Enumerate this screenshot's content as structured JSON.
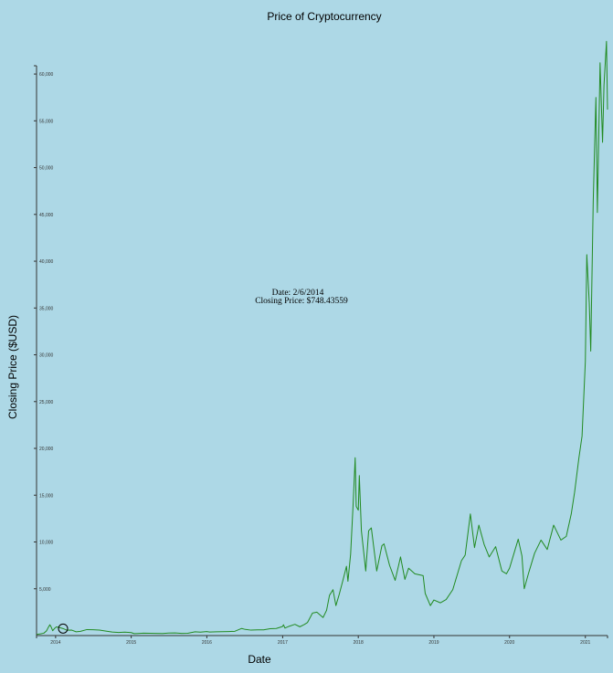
{
  "chart_data": {
    "type": "line",
    "title": "Price of Cryptocurrency",
    "xlabel": "Date",
    "ylabel": "Closing Price ($USD)",
    "xlim": [
      "2013-10-01",
      "2021-04-18"
    ],
    "ylim": [
      0,
      60000
    ],
    "x_ticks": [
      "2014",
      "2015",
      "2016",
      "2017",
      "2018",
      "2019",
      "2020",
      "2021"
    ],
    "y_ticks": [
      "5,000",
      "10,000",
      "15,000",
      "20,000",
      "25,000",
      "30,000",
      "35,000",
      "40,000",
      "45,000",
      "50,000",
      "55,000",
      "60,000"
    ],
    "y_tick_values": [
      5000,
      10000,
      15000,
      20000,
      25000,
      30000,
      35000,
      40000,
      45000,
      50000,
      55000,
      60000
    ],
    "line_color": "#228b22",
    "grid": false,
    "highlight": {
      "date": "2014-02-06",
      "value": 748.43559
    },
    "tooltip": {
      "date_line": "Date: 2/6/2014",
      "price_line": "Closing Price: $748.43559"
    },
    "series": [
      {
        "values": [
          [
            "2013-10-01",
            123
          ],
          [
            "2013-10-20",
            180
          ],
          [
            "2013-11-05",
            250
          ],
          [
            "2013-11-18",
            500
          ],
          [
            "2013-11-25",
            800
          ],
          [
            "2013-12-04",
            1150
          ],
          [
            "2013-12-10",
            950
          ],
          [
            "2013-12-18",
            520
          ],
          [
            "2013-12-26",
            740
          ],
          [
            "2014-01-05",
            930
          ],
          [
            "2014-01-20",
            850
          ],
          [
            "2014-02-06",
            748.43559
          ],
          [
            "2014-02-25",
            570
          ],
          [
            "2014-03-20",
            580
          ],
          [
            "2014-04-10",
            400
          ],
          [
            "2014-05-01",
            450
          ],
          [
            "2014-06-01",
            640
          ],
          [
            "2014-07-01",
            620
          ],
          [
            "2014-08-01",
            590
          ],
          [
            "2014-09-01",
            480
          ],
          [
            "2014-10-01",
            380
          ],
          [
            "2014-11-01",
            330
          ],
          [
            "2014-12-01",
            370
          ],
          [
            "2015-01-01",
            315
          ],
          [
            "2015-01-15",
            210
          ],
          [
            "2015-02-01",
            225
          ],
          [
            "2015-03-01",
            260
          ],
          [
            "2015-04-01",
            245
          ],
          [
            "2015-05-01",
            235
          ],
          [
            "2015-06-01",
            225
          ],
          [
            "2015-07-01",
            265
          ],
          [
            "2015-08-01",
            280
          ],
          [
            "2015-09-01",
            230
          ],
          [
            "2015-10-01",
            240
          ],
          [
            "2015-11-05",
            400
          ],
          [
            "2015-12-01",
            370
          ],
          [
            "2015-12-31",
            430
          ],
          [
            "2016-01-15",
            380
          ],
          [
            "2016-02-15",
            400
          ],
          [
            "2016-03-15",
            415
          ],
          [
            "2016-04-15",
            430
          ],
          [
            "2016-05-15",
            455
          ],
          [
            "2016-06-17",
            760
          ],
          [
            "2016-07-01",
            675
          ],
          [
            "2016-08-01",
            580
          ],
          [
            "2016-09-01",
            605
          ],
          [
            "2016-10-01",
            615
          ],
          [
            "2016-11-01",
            730
          ],
          [
            "2016-12-01",
            755
          ],
          [
            "2016-12-31",
            960
          ],
          [
            "2017-01-05",
            1150
          ],
          [
            "2017-01-12",
            800
          ],
          [
            "2017-02-01",
            990
          ],
          [
            "2017-03-01",
            1200
          ],
          [
            "2017-03-25",
            940
          ],
          [
            "2017-04-15",
            1180
          ],
          [
            "2017-05-01",
            1400
          ],
          [
            "2017-05-25",
            2400
          ],
          [
            "2017-06-15",
            2500
          ],
          [
            "2017-07-15",
            1930
          ],
          [
            "2017-08-01",
            2700
          ],
          [
            "2017-08-15",
            4300
          ],
          [
            "2017-09-01",
            4900
          ],
          [
            "2017-09-15",
            3200
          ],
          [
            "2017-10-01",
            4400
          ],
          [
            "2017-10-20",
            6000
          ],
          [
            "2017-11-05",
            7400
          ],
          [
            "2017-11-12",
            5800
          ],
          [
            "2017-11-25",
            8700
          ],
          [
            "2017-12-07",
            14000
          ],
          [
            "2017-12-17",
            19000
          ],
          [
            "2017-12-22",
            13800
          ],
          [
            "2018-01-01",
            13400
          ],
          [
            "2018-01-06",
            17100
          ],
          [
            "2018-01-16",
            11200
          ],
          [
            "2018-02-06",
            6900
          ],
          [
            "2018-02-20",
            11200
          ],
          [
            "2018-03-05",
            11500
          ],
          [
            "2018-03-31",
            6900
          ],
          [
            "2018-04-25",
            9600
          ],
          [
            "2018-05-05",
            9800
          ],
          [
            "2018-06-01",
            7500
          ],
          [
            "2018-06-28",
            5900
          ],
          [
            "2018-07-24",
            8400
          ],
          [
            "2018-08-14",
            6000
          ],
          [
            "2018-09-01",
            7200
          ],
          [
            "2018-10-01",
            6600
          ],
          [
            "2018-11-10",
            6400
          ],
          [
            "2018-11-20",
            4500
          ],
          [
            "2018-12-15",
            3200
          ],
          [
            "2019-01-01",
            3800
          ],
          [
            "2019-02-01",
            3500
          ],
          [
            "2019-03-01",
            3850
          ],
          [
            "2019-04-02",
            4900
          ],
          [
            "2019-05-14",
            8000
          ],
          [
            "2019-06-01",
            8600
          ],
          [
            "2019-06-26",
            13000
          ],
          [
            "2019-07-16",
            9400
          ],
          [
            "2019-08-06",
            11800
          ],
          [
            "2019-09-01",
            9700
          ],
          [
            "2019-09-25",
            8400
          ],
          [
            "2019-10-26",
            9500
          ],
          [
            "2019-11-25",
            6900
          ],
          [
            "2019-12-17",
            6600
          ],
          [
            "2020-01-01",
            7200
          ],
          [
            "2020-02-12",
            10300
          ],
          [
            "2020-03-01",
            8500
          ],
          [
            "2020-03-12",
            5000
          ],
          [
            "2020-04-01",
            6600
          ],
          [
            "2020-05-01",
            8800
          ],
          [
            "2020-06-01",
            10200
          ],
          [
            "2020-07-01",
            9200
          ],
          [
            "2020-08-01",
            11800
          ],
          [
            "2020-09-05",
            10200
          ],
          [
            "2020-10-01",
            10600
          ],
          [
            "2020-10-25",
            13000
          ],
          [
            "2020-11-10",
            15300
          ],
          [
            "2020-12-01",
            19000
          ],
          [
            "2020-12-16",
            21300
          ],
          [
            "2021-01-01",
            29300
          ],
          [
            "2021-01-08",
            40700
          ],
          [
            "2021-01-20",
            35500
          ],
          [
            "2021-01-27",
            30400
          ],
          [
            "2021-02-08",
            46400
          ],
          [
            "2021-02-21",
            57500
          ],
          [
            "2021-02-28",
            45200
          ],
          [
            "2021-03-13",
            61200
          ],
          [
            "2021-03-25",
            52700
          ],
          [
            "2021-04-01",
            58800
          ],
          [
            "2021-04-13",
            63500
          ],
          [
            "2021-04-18",
            56200
          ]
        ]
      }
    ]
  }
}
